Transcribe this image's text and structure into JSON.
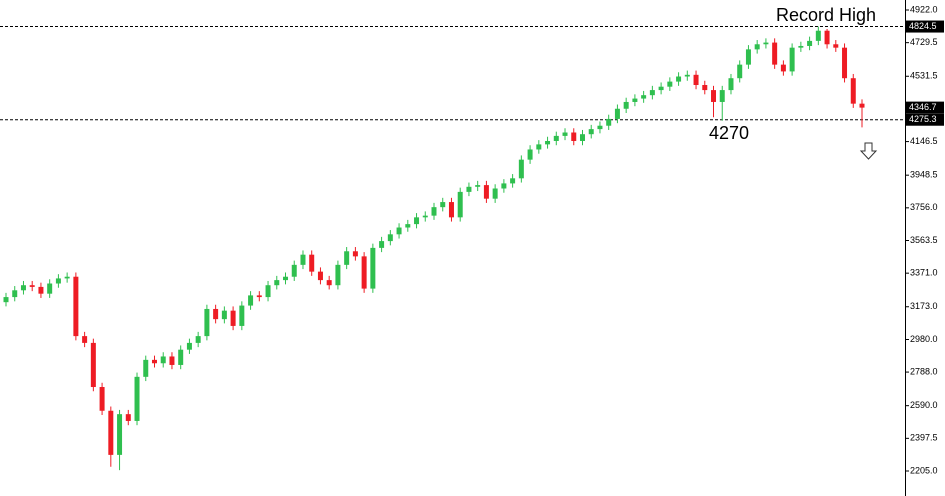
{
  "chart_data": {
    "type": "candlestick",
    "ylim": [
      2205,
      4922
    ],
    "yticks": [
      {
        "value": 4922,
        "label": "4922.0"
      },
      {
        "value": 4729.5,
        "label": "4729.5"
      },
      {
        "value": 4531.5,
        "label": "4531.5"
      },
      {
        "value": 4146.5,
        "label": "4146.5"
      },
      {
        "value": 3948.5,
        "label": "3948.5"
      },
      {
        "value": 3756,
        "label": "3756.0"
      },
      {
        "value": 3563.5,
        "label": "3563.5"
      },
      {
        "value": 3371,
        "label": "3371.0"
      },
      {
        "value": 3173,
        "label": "3173.0"
      },
      {
        "value": 2980,
        "label": "2980.0"
      },
      {
        "value": 2788,
        "label": "2788.0"
      },
      {
        "value": 2590,
        "label": "2590.0"
      },
      {
        "value": 2397.5,
        "label": "2397.5"
      },
      {
        "value": 2205,
        "label": "2205.0"
      }
    ],
    "up_color": "#2fbf4f",
    "down_color": "#ee1c24",
    "open": [
      3200,
      3230,
      3270,
      3300,
      3290,
      3250,
      3310,
      3340,
      3350,
      3000,
      2960,
      2700,
      2560,
      2300,
      2540,
      2500,
      2760,
      2860,
      2840,
      2880,
      2830,
      2920,
      2960,
      3000,
      3160,
      3100,
      3150,
      3060,
      3180,
      3240,
      3230,
      3300,
      3330,
      3350,
      3420,
      3480,
      3380,
      3330,
      3300,
      3420,
      3500,
      3470,
      3280,
      3520,
      3560,
      3600,
      3640,
      3660,
      3700,
      3710,
      3760,
      3790,
      3700,
      3850,
      3880,
      3890,
      3810,
      3870,
      3900,
      3930,
      4040,
      4100,
      4130,
      4150,
      4180,
      4200,
      4150,
      4190,
      4220,
      4240,
      4280,
      4340,
      4380,
      4400,
      4420,
      4450,
      4470,
      4500,
      4530,
      4540,
      4480,
      4450,
      4380,
      4450,
      4520,
      4600,
      4690,
      4720,
      4730,
      4600,
      4560,
      4700,
      4710,
      4740,
      4800,
      4720,
      4700,
      4520,
      4370
    ],
    "high": [
      3255,
      3295,
      3325,
      3325,
      3315,
      3335,
      3365,
      3375,
      3375,
      3025,
      2985,
      2725,
      2585,
      2565,
      2565,
      2785,
      2885,
      2885,
      2905,
      2905,
      2945,
      2985,
      3025,
      3185,
      3185,
      3175,
      3175,
      3205,
      3265,
      3265,
      3325,
      3355,
      3375,
      3445,
      3505,
      3505,
      3405,
      3355,
      3445,
      3525,
      3525,
      3495,
      3545,
      3585,
      3625,
      3665,
      3685,
      3725,
      3735,
      3785,
      3815,
      3815,
      3875,
      3905,
      3915,
      3915,
      3895,
      3925,
      3955,
      4065,
      4125,
      4155,
      4175,
      4205,
      4225,
      4225,
      4215,
      4245,
      4265,
      4305,
      4365,
      4405,
      4425,
      4445,
      4475,
      4495,
      4525,
      4555,
      4565,
      4565,
      4505,
      4475,
      4475,
      4545,
      4625,
      4715,
      4745,
      4755,
      4755,
      4625,
      4725,
      4735,
      4765,
      4824.5,
      4810,
      4745,
      4725,
      4545,
      4395
    ],
    "low": [
      3175,
      3205,
      3245,
      3265,
      3225,
      3225,
      3285,
      3315,
      2975,
      2935,
      2675,
      2535,
      2230,
      2210,
      2475,
      2475,
      2735,
      2815,
      2815,
      2805,
      2805,
      2895,
      2935,
      2975,
      3075,
      3075,
      3035,
      3035,
      3155,
      3205,
      3205,
      3275,
      3305,
      3325,
      3395,
      3355,
      3305,
      3275,
      3275,
      3395,
      3445,
      3255,
      3255,
      3495,
      3535,
      3575,
      3615,
      3635,
      3675,
      3685,
      3735,
      3675,
      3675,
      3825,
      3855,
      3785,
      3785,
      3845,
      3875,
      3905,
      4015,
      4075,
      4105,
      4125,
      4155,
      4125,
      4125,
      4165,
      4195,
      4215,
      4255,
      4315,
      4355,
      4375,
      4395,
      4425,
      4445,
      4475,
      4505,
      4455,
      4425,
      4290,
      4270,
      4425,
      4495,
      4575,
      4665,
      4695,
      4575,
      4535,
      4535,
      4675,
      4685,
      4715,
      4695,
      4675,
      4495,
      4345,
      4230
    ],
    "close": [
      3230,
      3270,
      3300,
      3290,
      3250,
      3310,
      3340,
      3350,
      3000,
      2960,
      2700,
      2560,
      2300,
      2540,
      2500,
      2760,
      2860,
      2840,
      2880,
      2830,
      2920,
      2960,
      3000,
      3160,
      3100,
      3150,
      3060,
      3180,
      3240,
      3230,
      3300,
      3330,
      3350,
      3420,
      3480,
      3380,
      3330,
      3300,
      3420,
      3500,
      3470,
      3280,
      3520,
      3560,
      3600,
      3640,
      3660,
      3700,
      3710,
      3760,
      3790,
      3700,
      3850,
      3880,
      3890,
      3810,
      3870,
      3900,
      3930,
      4040,
      4100,
      4130,
      4150,
      4180,
      4200,
      4150,
      4190,
      4220,
      4240,
      4280,
      4340,
      4380,
      4400,
      4420,
      4450,
      4470,
      4500,
      4530,
      4540,
      4480,
      4450,
      4380,
      4450,
      4520,
      4600,
      4690,
      4720,
      4730,
      4600,
      4560,
      4700,
      4710,
      4740,
      4800,
      4720,
      4700,
      4520,
      4370,
      4346.7
    ],
    "levels": [
      {
        "value": 4824.5,
        "label": "4824.5"
      },
      {
        "value": 4275.3,
        "label": "4275.3"
      }
    ],
    "last_price": {
      "value": 4346.7,
      "label": "4346.7"
    },
    "annotations": [
      "Record High",
      "4270"
    ]
  }
}
